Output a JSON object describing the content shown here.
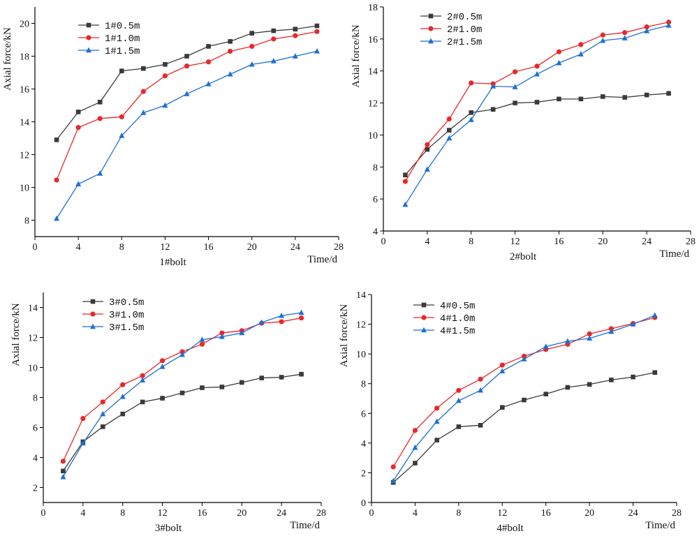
{
  "colors": {
    "s05": "#3a3a3a",
    "s10": "#e8282b",
    "s15": "#1f6fd0"
  },
  "chart_data": [
    {
      "type": "line",
      "xlabel": "1#bolt",
      "x_unit_label": "Time/d",
      "ylabel": "Axial force/kN",
      "xlim": [
        0,
        28
      ],
      "ylim": [
        7,
        21
      ],
      "xticks": [
        0,
        4,
        8,
        12,
        16,
        20,
        24,
        28
      ],
      "yticks": [
        8,
        10,
        12,
        14,
        16,
        18,
        20
      ],
      "legend_position": "top-left",
      "x": [
        2,
        4,
        6,
        8,
        10,
        12,
        14,
        16,
        18,
        20,
        22,
        24,
        26
      ],
      "series": [
        {
          "name": "1#0.5m",
          "marker": "square",
          "color": "#3a3a3a",
          "values": [
            12.9,
            14.6,
            15.2,
            17.1,
            17.25,
            17.5,
            18.0,
            18.6,
            18.9,
            19.4,
            19.55,
            19.65,
            19.85
          ]
        },
        {
          "name": "1#1.0m",
          "marker": "circle",
          "color": "#e8282b",
          "values": [
            10.45,
            13.65,
            14.2,
            14.3,
            15.85,
            16.8,
            17.4,
            17.65,
            18.3,
            18.6,
            19.05,
            19.25,
            19.5
          ]
        },
        {
          "name": "1#1.5m",
          "marker": "triangle",
          "color": "#1f6fd0",
          "values": [
            8.1,
            10.2,
            10.85,
            13.15,
            14.55,
            15.0,
            15.7,
            16.3,
            16.9,
            17.5,
            17.7,
            18.0,
            18.3
          ]
        }
      ]
    },
    {
      "type": "line",
      "xlabel": "2#bolt",
      "x_unit_label": "Time/d",
      "ylabel": "Axial force/kN",
      "xlim": [
        0,
        28
      ],
      "ylim": [
        4,
        18
      ],
      "xticks": [
        0,
        4,
        8,
        12,
        16,
        20,
        24,
        28
      ],
      "yticks": [
        4,
        6,
        8,
        10,
        12,
        14,
        16,
        18
      ],
      "legend_position": "top-left",
      "x": [
        2,
        4,
        6,
        8,
        10,
        12,
        14,
        16,
        18,
        20,
        22,
        24,
        26
      ],
      "series": [
        {
          "name": "2#0.5m",
          "marker": "square",
          "color": "#3a3a3a",
          "values": [
            7.5,
            9.1,
            10.3,
            11.4,
            11.6,
            12.0,
            12.05,
            12.25,
            12.25,
            12.4,
            12.35,
            12.5,
            12.6
          ]
        },
        {
          "name": "2#1.0m",
          "marker": "circle",
          "color": "#e8282b",
          "values": [
            7.1,
            9.4,
            11.0,
            13.25,
            13.2,
            13.95,
            14.3,
            15.2,
            15.65,
            16.25,
            16.4,
            16.75,
            17.05
          ]
        },
        {
          "name": "2#1.5m",
          "marker": "triangle",
          "color": "#1f6fd0",
          "values": [
            5.65,
            7.85,
            9.8,
            10.95,
            13.05,
            13.0,
            13.8,
            14.5,
            15.05,
            15.9,
            16.05,
            16.5,
            16.85
          ]
        }
      ]
    },
    {
      "type": "line",
      "xlabel": "3#bolt",
      "x_unit_label": "Time/d",
      "ylabel": "Axial force/kN",
      "xlim": [
        0,
        28
      ],
      "ylim": [
        1,
        15
      ],
      "xticks": [
        0,
        4,
        8,
        12,
        16,
        20,
        24,
        28
      ],
      "yticks": [
        2,
        4,
        6,
        8,
        10,
        12,
        14
      ],
      "legend_position": "top-left",
      "x": [
        2,
        4,
        6,
        8,
        10,
        12,
        14,
        16,
        18,
        20,
        22,
        24,
        26
      ],
      "series": [
        {
          "name": "3#0.5m",
          "marker": "square",
          "color": "#3a3a3a",
          "values": [
            3.1,
            5.05,
            6.05,
            6.9,
            7.7,
            7.95,
            8.3,
            8.65,
            8.7,
            9.0,
            9.3,
            9.35,
            9.55
          ]
        },
        {
          "name": "3#1.0m",
          "marker": "circle",
          "color": "#e8282b",
          "values": [
            3.75,
            6.6,
            7.7,
            8.85,
            9.45,
            10.45,
            11.05,
            11.55,
            12.3,
            12.45,
            12.95,
            13.05,
            13.3
          ]
        },
        {
          "name": "3#1.5m",
          "marker": "triangle",
          "color": "#1f6fd0",
          "values": [
            2.7,
            4.95,
            6.9,
            8.05,
            9.15,
            10.05,
            10.85,
            11.85,
            12.05,
            12.3,
            13.0,
            13.45,
            13.65
          ]
        }
      ]
    },
    {
      "type": "line",
      "xlabel": "4#bolt",
      "x_unit_label": "Time/d",
      "ylabel": "Axial force/kN",
      "xlim": [
        0,
        28
      ],
      "ylim": [
        0,
        14
      ],
      "xticks": [
        0,
        4,
        8,
        12,
        16,
        20,
        24,
        28
      ],
      "yticks": [
        0,
        2,
        4,
        6,
        8,
        10,
        12,
        14
      ],
      "legend_position": "top-left",
      "x": [
        2,
        4,
        6,
        8,
        10,
        12,
        14,
        16,
        18,
        20,
        22,
        24,
        26
      ],
      "series": [
        {
          "name": "4#0.5m",
          "marker": "square",
          "color": "#3a3a3a",
          "values": [
            1.35,
            2.65,
            4.2,
            5.1,
            5.2,
            6.4,
            6.9,
            7.3,
            7.75,
            7.95,
            8.25,
            8.45,
            8.75
          ]
        },
        {
          "name": "4#1.0m",
          "marker": "circle",
          "color": "#e8282b",
          "values": [
            2.4,
            4.85,
            6.35,
            7.55,
            8.3,
            9.25,
            9.85,
            10.3,
            10.65,
            11.35,
            11.7,
            12.05,
            12.45
          ]
        },
        {
          "name": "4#1.5m",
          "marker": "triangle",
          "color": "#1f6fd0",
          "values": [
            1.45,
            3.7,
            5.45,
            6.85,
            7.55,
            8.85,
            9.65,
            10.5,
            10.85,
            11.05,
            11.5,
            12.0,
            12.6
          ]
        }
      ]
    }
  ]
}
